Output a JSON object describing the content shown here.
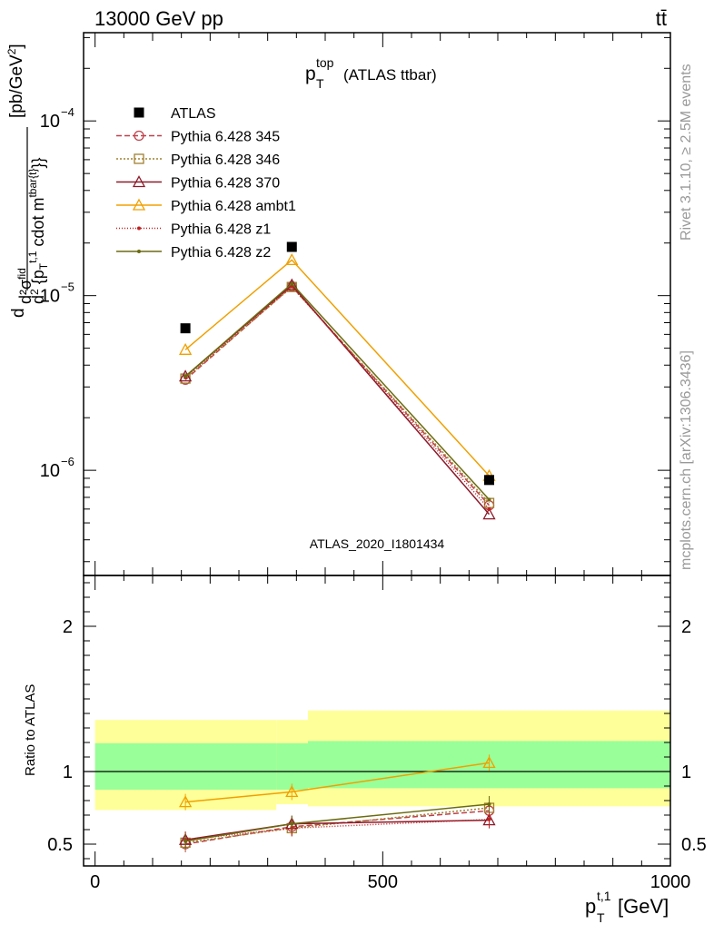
{
  "header": {
    "energy_label": "13000 GeV pp",
    "process_label": "tt̄"
  },
  "plot": {
    "title_main": "p",
    "title_sub": "T",
    "title_sup": "top",
    "title_suffix": "(ATLAS ttbar)",
    "watermark": "ATLAS_2020_I1801434",
    "side_label_rivet": "Rivet 3.1.10, ≥ 2.5M events",
    "side_label_mcplots": "mcplots.cern.ch [arXiv:1306.3436]"
  },
  "chart_data": [
    {
      "type": "line",
      "panel": "main",
      "x_scale": "linear",
      "y_scale": "log",
      "xlim": [
        -20,
        1000
      ],
      "ylim": [
        2.5e-07,
        0.00032
      ],
      "ylabel": "d²σ^fid / d² {p_T^{t,1} cdot m^{tbar{t}}} [pb/GeV²]",
      "y_ticks": [
        {
          "value": 1e-06,
          "label": "10",
          "exp": "−6"
        },
        {
          "value": 1e-05,
          "label": "10",
          "exp": "−5"
        },
        {
          "value": 0.0001,
          "label": "10",
          "exp": "−4"
        }
      ],
      "x": [
        157,
        342,
        685
      ],
      "reference": {
        "name": "ATLAS",
        "color": "#000000",
        "values": [
          6.5e-06,
          1.9e-05,
          8.8e-07
        ]
      },
      "series": [
        {
          "name": "Pythia 6.428 345",
          "color": "#c0404a",
          "dash": "6,3",
          "marker": "circle",
          "values": [
            3.3e-06,
            1.13e-05,
            6.3e-07
          ]
        },
        {
          "name": "Pythia 6.428 346",
          "color": "#a08030",
          "dash": "2,2",
          "marker": "square",
          "values": [
            3.35e-06,
            1.12e-05,
            6.5e-07
          ]
        },
        {
          "name": "Pythia 6.428 370",
          "color": "#8b1a2a",
          "dash": "",
          "marker": "triangle",
          "values": [
            3.45e-06,
            1.15e-05,
            5.6e-07
          ]
        },
        {
          "name": "Pythia 6.428 ambt1",
          "color": "#f0a000",
          "dash": "",
          "marker": "triangle",
          "values": [
            4.9e-06,
            1.6e-05,
            9.3e-07
          ]
        },
        {
          "name": "Pythia 6.428 z1",
          "color": "#c02020",
          "dash": "1,2",
          "marker": "dot",
          "values": [
            3.4e-06,
            1.13e-05,
            6e-07
          ]
        },
        {
          "name": "Pythia 6.428 z2",
          "color": "#6b6b10",
          "dash": "",
          "marker": "dot",
          "values": [
            3.45e-06,
            1.17e-05,
            6.8e-07
          ]
        }
      ]
    },
    {
      "type": "line",
      "panel": "ratio",
      "x_scale": "linear",
      "y_scale": "linear",
      "xlim": [
        -20,
        1000
      ],
      "ylim": [
        0.35,
        2.35
      ],
      "xlabel": "p_T^{t,1} [GeV]",
      "ylabel": "Ratio to ATLAS",
      "x_ticks": [
        0,
        500,
        1000
      ],
      "y_ticks": [
        0.5,
        1,
        2
      ],
      "bins": [
        {
          "x_low": 0,
          "x_high": 315,
          "stat_low": 0.875,
          "stat_high": 1.195,
          "total_low": 0.735,
          "total_high": 1.355
        },
        {
          "x_low": 315,
          "x_high": 370,
          "stat_low": 0.875,
          "stat_high": 1.195,
          "total_low": 0.775,
          "total_high": 1.355
        },
        {
          "x_low": 370,
          "x_high": 1000,
          "stat_low": 0.885,
          "stat_high": 1.21,
          "total_low": 0.76,
          "total_high": 1.42
        }
      ],
      "x": [
        157,
        342,
        685
      ],
      "series": [
        {
          "name": "Pythia 6.428 345",
          "values": [
            0.5,
            0.62,
            0.73
          ]
        },
        {
          "name": "Pythia 6.428 346",
          "values": [
            0.51,
            0.61,
            0.75
          ]
        },
        {
          "name": "Pythia 6.428 370",
          "values": [
            0.53,
            0.64,
            0.665
          ]
        },
        {
          "name": "Pythia 6.428 ambt1",
          "values": [
            0.79,
            0.86,
            1.06
          ]
        },
        {
          "name": "Pythia 6.428 z1",
          "values": [
            0.53,
            0.61,
            0.67
          ]
        },
        {
          "name": "Pythia 6.428 z2",
          "values": [
            0.52,
            0.64,
            0.775
          ]
        }
      ]
    }
  ]
}
